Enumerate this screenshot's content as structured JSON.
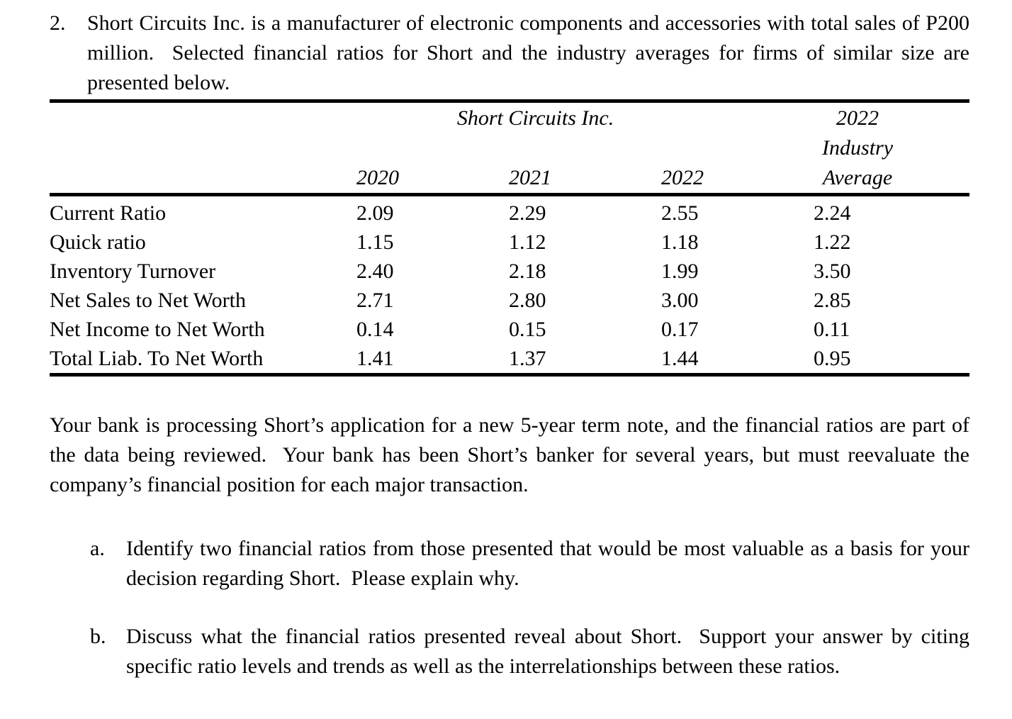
{
  "problem": {
    "number": "2.",
    "intro": "Short Circuits Inc. is a manufacturer of electronic components and accessories with total sales of P200 million.  Selected financial ratios for Short and the industry averages for firms of similar size are presented below."
  },
  "table": {
    "company_header": "Short Circuits Inc.",
    "industry_header_lines": [
      "2022",
      "Industry",
      "Average"
    ],
    "year_headers": [
      "2020",
      "2021",
      "2022"
    ],
    "rows": [
      {
        "label": "Current Ratio",
        "values": [
          "2.09",
          "2.29",
          "2.55",
          "2.24"
        ]
      },
      {
        "label": "Quick ratio",
        "values": [
          "1.15",
          "1.12",
          "1.18",
          "1.22"
        ]
      },
      {
        "label": "Inventory Turnover",
        "values": [
          "2.40",
          "2.18",
          "1.99",
          "3.50"
        ]
      },
      {
        "label": "Net Sales to Net Worth",
        "values": [
          "2.71",
          "2.80",
          "3.00",
          "2.85"
        ]
      },
      {
        "label": "Net Income to Net Worth",
        "values": [
          "0.14",
          "0.15",
          "0.17",
          "0.11"
        ]
      },
      {
        "label": "Total Liab. To Net Worth",
        "values": [
          "1.41",
          "1.37",
          "1.44",
          "0.95"
        ]
      }
    ]
  },
  "body": {
    "paragraph": "Your bank is processing Short’s application for a new 5-year term note, and the financial ratios are part of the data being reviewed.  Your bank has been Short’s banker for several years, but must reevaluate the company’s financial position for each major transaction."
  },
  "questions": [
    {
      "marker": "a.",
      "text": "Identify two financial ratios from those presented that would be most valuable as a basis for your decision regarding Short.  Please explain why."
    },
    {
      "marker": "b.",
      "text": "Discuss what the financial ratios presented reveal about Short.  Support your answer by citing specific ratio levels and trends as well as the interrelationships between these ratios."
    }
  ]
}
